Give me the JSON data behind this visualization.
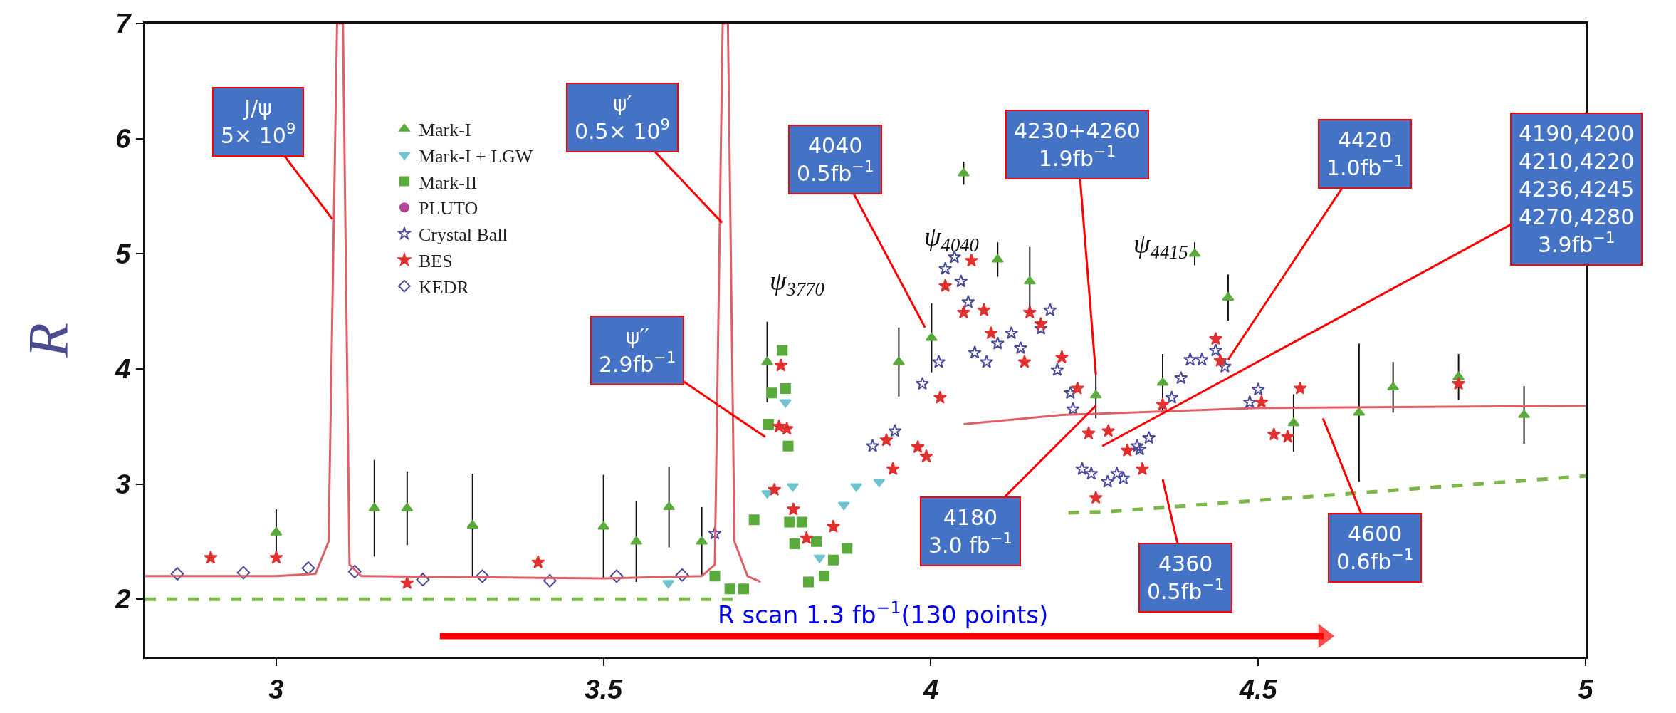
{
  "chart_data": {
    "type": "scatter",
    "ylabel": "R",
    "xlim": [
      2.8,
      5
    ],
    "ylim": [
      1.5,
      7
    ],
    "xticks": [
      3,
      3.5,
      4,
      4.5,
      5
    ],
    "yticks": [
      2,
      3,
      4,
      5,
      6,
      7
    ],
    "legend": "top left",
    "series": [
      {
        "name": "Mark-I",
        "color": "#5aaa3c",
        "marker": "triangle",
        "x": [
          3.0,
          3.15,
          3.2,
          3.3,
          3.5,
          3.55,
          3.6,
          3.65,
          3.75,
          3.951,
          4.001,
          4.05,
          4.102,
          4.151,
          4.252,
          4.354,
          4.403,
          4.454,
          4.554,
          4.654,
          4.706,
          4.806,
          4.906
        ],
        "values": [
          2.58,
          2.79,
          2.79,
          2.64,
          2.63,
          2.5,
          2.8,
          2.5,
          4.06,
          4.06,
          4.27,
          5.7,
          4.95,
          4.76,
          3.77,
          3.88,
          5.0,
          4.62,
          3.53,
          3.62,
          3.84,
          3.93,
          3.6
        ],
        "errors": [
          0.2,
          0.42,
          0.32,
          0.45,
          0.45,
          0.35,
          0.35,
          0.3,
          0.35,
          0.3,
          0.3,
          0.1,
          0.15,
          0.3,
          0.2,
          0.25,
          0.1,
          0.2,
          0.25,
          0.6,
          0.22,
          0.2,
          0.25
        ]
      },
      {
        "name": "Mark-I + LGW",
        "color": "#6fc3d0",
        "marker": "triangle-down",
        "x": [
          3.599,
          3.75,
          3.778,
          3.789,
          3.83,
          3.867,
          3.886,
          3.921
        ],
        "values": [
          2.14,
          2.92,
          3.71,
          2.98,
          2.36,
          2.82,
          2.98,
          3.02
        ]
      },
      {
        "name": "Mark-II",
        "color": "#5aaa3c",
        "marker": "square",
        "x": [
          3.67,
          3.693,
          3.714,
          3.73,
          3.752,
          3.757,
          3.773,
          3.778,
          3.782,
          3.784,
          3.792,
          3.803,
          3.813,
          3.825,
          3.837,
          3.851,
          3.872
        ],
        "values": [
          2.2,
          2.09,
          2.09,
          2.69,
          3.52,
          3.79,
          4.16,
          3.83,
          3.33,
          2.67,
          2.48,
          2.67,
          2.15,
          2.5,
          2.2,
          2.34,
          2.44
        ]
      },
      {
        "name": "PLUTO",
        "color": "#b0479a",
        "marker": "circle"
      },
      {
        "name": "Crystal Ball",
        "color": "#4b4b99",
        "marker": "star-open",
        "x": [
          3.67,
          3.911,
          3.945,
          3.987,
          4.012,
          4.022,
          4.036,
          4.046,
          4.057,
          4.067,
          4.085,
          4.102,
          4.123,
          4.137,
          4.168,
          4.182,
          4.193,
          4.213,
          4.217,
          4.231,
          4.245,
          4.27,
          4.284,
          4.294,
          4.315,
          4.319,
          4.333,
          4.368,
          4.382,
          4.396,
          4.414,
          4.435,
          4.449,
          4.487,
          4.5
        ],
        "values": [
          2.57,
          3.33,
          3.46,
          3.87,
          4.06,
          4.87,
          4.97,
          4.76,
          4.58,
          4.14,
          4.06,
          4.22,
          4.31,
          4.18,
          4.35,
          4.51,
          3.99,
          3.79,
          3.65,
          3.13,
          3.09,
          3.02,
          3.09,
          3.05,
          3.33,
          3.3,
          3.4,
          3.75,
          3.92,
          4.08,
          4.08,
          4.16,
          4.02,
          3.71,
          3.82
        ]
      },
      {
        "name": "BES",
        "color": "#e03030",
        "marker": "star",
        "x": [
          2.9,
          3.0,
          3.2,
          3.4,
          3.761,
          3.768,
          3.771,
          3.78,
          3.79,
          3.81,
          3.851,
          3.932,
          3.942,
          3.98,
          3.993,
          4.014,
          4.022,
          4.05,
          4.062,
          4.081,
          4.092,
          4.143,
          4.151,
          4.168,
          4.2,
          4.224,
          4.241,
          4.252,
          4.271,
          4.3,
          4.323,
          4.354,
          4.435,
          4.442,
          4.505,
          4.524,
          4.545,
          4.564,
          4.806
        ],
        "values": [
          2.36,
          2.36,
          2.14,
          2.32,
          2.95,
          3.5,
          4.03,
          3.48,
          2.78,
          2.53,
          2.63,
          3.38,
          3.13,
          3.32,
          3.24,
          3.75,
          4.72,
          4.49,
          4.94,
          4.51,
          4.31,
          4.06,
          4.49,
          4.39,
          4.1,
          3.83,
          3.44,
          2.88,
          3.46,
          3.29,
          3.13,
          3.69,
          4.26,
          4.07,
          3.71,
          3.43,
          3.41,
          3.83,
          3.87
        ]
      },
      {
        "name": "KEDR",
        "color": "#4b4b99",
        "marker": "diamond-open",
        "x": [
          2.849,
          2.95,
          3.049,
          3.12,
          3.224,
          3.315,
          3.418,
          3.52,
          3.62
        ],
        "values": [
          2.22,
          2.23,
          2.27,
          2.24,
          2.17,
          2.2,
          2.16,
          2.2,
          2.21
        ]
      },
      {
        "type": "line",
        "color": "#e0606a",
        "marker": "none",
        "line_style": "solid",
        "x": [
          2.8,
          3.0,
          3.06,
          3.08,
          3.093,
          3.102,
          3.112,
          3.13,
          3.5,
          3.65,
          3.67,
          3.682,
          3.69,
          3.7,
          3.72,
          3.74,
          3.966,
          4.05,
          4.2,
          4.5,
          5.0
        ],
        "values": [
          2.2,
          2.2,
          2.22,
          2.5,
          7,
          7,
          2.3,
          2.2,
          2.18,
          2.2,
          2.3,
          7,
          7,
          2.5,
          2.2,
          2.15,
          null,
          3.52,
          3.6,
          3.66,
          3.68
        ]
      },
      {
        "type": "line",
        "color": "#ff0000",
        "marker": "triangle",
        "line_style": "solid",
        "x": [
          3.25,
          4.6
        ],
        "values": [
          1.68,
          1.68
        ]
      },
      {
        "type": "line",
        "color": "#7ab648",
        "marker": "none",
        "line_style": "dashed",
        "x": [
          2.8,
          3.7,
          4.0,
          4.21,
          4.27,
          5.0
        ],
        "values": [
          2.0,
          2.0,
          null,
          2.75,
          2.76,
          3.07
        ]
      }
    ],
    "annotations": [
      {
        "text": "J/ψ\n5× 10$^{9}$",
        "x": 3.086,
        "y": 5.3
      },
      {
        "text": "ψ′\n0.5× 10$^{9}$",
        "x": 3.681,
        "y": 5.27
      },
      "ψ′′\n2.9fb$^{−1}$",
      "4040\n0.5fb$^{−1}$",
      {
        "text": "4230+4260\n1.9fb$^{−1}$",
        "x": 4.252,
        "y": 3.95
      },
      {
        "text": "4180\n3.0 fb$^{−1}$",
        "x": 4.252,
        "y": 3.68
      },
      "4360\n0.5fb$^{−1}$",
      {
        "text": "4420\n1.0fb$^{−1}$",
        "x": 4.454,
        "y": 4.08
      },
      "4190,4200\n4210,4220\n4236,4245\n4270,4280\n3.9fb$^{−1}$",
      "4600\n0.6fb$^{−1}$",
      "ψ$_{3770}$",
      "ψ$_{4040}$",
      "ψ$_{4415}$",
      "R scan 1.3 fb$^{−1}$(130 points)"
    ]
  }
}
